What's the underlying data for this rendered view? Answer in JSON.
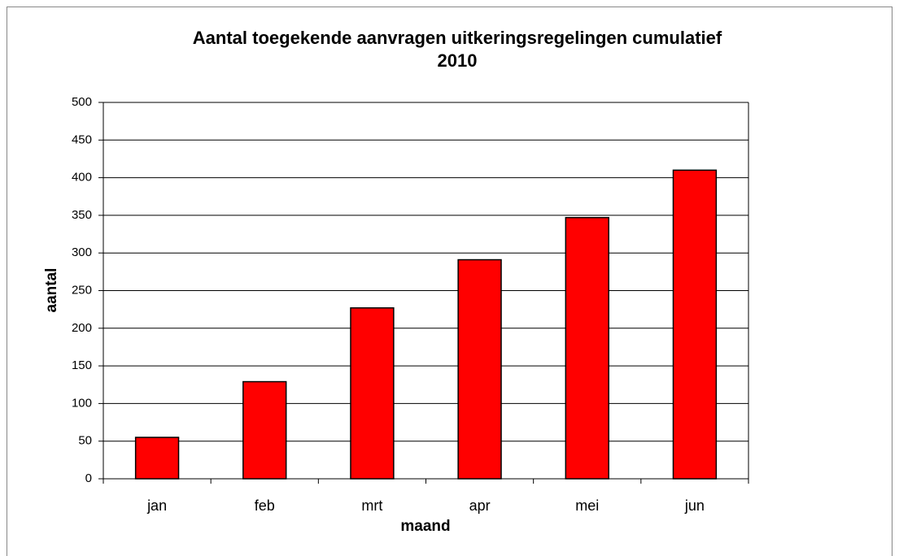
{
  "chart_data": {
    "type": "bar",
    "title": [
      "Aantal toegekende aanvragen uitkeringsregelingen cumulatief",
      "2010"
    ],
    "x_label": "maand",
    "y_label": "aantal",
    "categories": [
      "jan",
      "feb",
      "mrt",
      "apr",
      "mei",
      "jun"
    ],
    "values": [
      55,
      129,
      227,
      291,
      347,
      410
    ],
    "color": "#ff0000",
    "ylim": [
      0,
      500
    ],
    "yticks": [
      0,
      50,
      100,
      150,
      200,
      250,
      300,
      350,
      400,
      450,
      500
    ],
    "grid": true
  }
}
